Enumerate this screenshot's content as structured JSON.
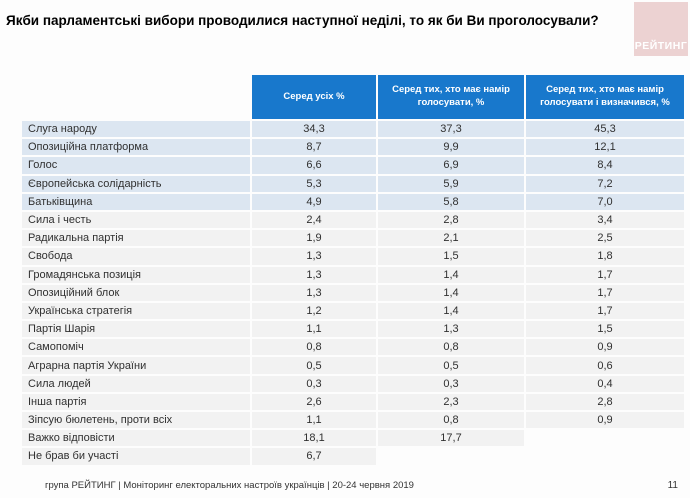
{
  "slide": {
    "title": "Якби парламентські вибори проводилися наступної неділі, то як би Ви проголосували?",
    "logo_text": "РЕЙТИНГ",
    "footer": "група РЕЙТИНГ | Моніторинг електоральних настроїв українців | 20-24 червня 2019",
    "page_number": "11"
  },
  "chart_data": {
    "type": "table",
    "title": "Якби парламентські вибори проводилися наступної неділі, то як би Ви проголосували?",
    "columns": [
      "Серед усіх %",
      "Серед тих, хто має намір голосувати, %",
      "Серед тих, хто має намір голосувати і визначився, %"
    ],
    "rows": [
      {
        "label": "Слуга народу",
        "values": [
          "34,3",
          "37,3",
          "45,3"
        ]
      },
      {
        "label": "Опозиційна платформа",
        "values": [
          "8,7",
          "9,9",
          "12,1"
        ]
      },
      {
        "label": "Голос",
        "values": [
          "6,6",
          "6,9",
          "8,4"
        ]
      },
      {
        "label": "Європейська солідарність",
        "values": [
          "5,3",
          "5,9",
          "7,2"
        ]
      },
      {
        "label": "Батьківщина",
        "values": [
          "4,9",
          "5,8",
          "7,0"
        ]
      },
      {
        "label": "Сила і честь",
        "values": [
          "2,4",
          "2,8",
          "3,4"
        ]
      },
      {
        "label": "Радикальна партія",
        "values": [
          "1,9",
          "2,1",
          "2,5"
        ]
      },
      {
        "label": "Свобода",
        "values": [
          "1,3",
          "1,5",
          "1,8"
        ]
      },
      {
        "label": "Громадянська позиція",
        "values": [
          "1,3",
          "1,4",
          "1,7"
        ]
      },
      {
        "label": "Опозиційний блок",
        "values": [
          "1,3",
          "1,4",
          "1,7"
        ]
      },
      {
        "label": "Українська стратегія",
        "values": [
          "1,2",
          "1,4",
          "1,7"
        ]
      },
      {
        "label": "Партія Шарія",
        "values": [
          "1,1",
          "1,3",
          "1,5"
        ]
      },
      {
        "label": "Самопоміч",
        "values": [
          "0,8",
          "0,8",
          "0,9"
        ]
      },
      {
        "label": "Аграрна партія України",
        "values": [
          "0,5",
          "0,5",
          "0,6"
        ]
      },
      {
        "label": "Сила людей",
        "values": [
          "0,3",
          "0,3",
          "0,4"
        ]
      },
      {
        "label": "Інша партія",
        "values": [
          "2,6",
          "2,3",
          "2,8"
        ]
      },
      {
        "label": "Зіпсую бюлетень, проти всіх",
        "values": [
          "1,1",
          "0,8",
          "0,9"
        ]
      },
      {
        "label": "Важко відповісти",
        "values": [
          "18,1",
          "17,7",
          ""
        ]
      },
      {
        "label": "Не брав би участі",
        "values": [
          "6,7",
          "",
          ""
        ]
      }
    ],
    "layout": "top 5 rows banded light blue, remaining rows light gray, blank trailing cells in last two rows"
  },
  "colors": {
    "header_bg": "#1878cc",
    "row_top5_bg": "#dce6f1",
    "row_bg": "#f2f2f2",
    "logo_bg": "#ecd2d2",
    "text": "#303030"
  }
}
